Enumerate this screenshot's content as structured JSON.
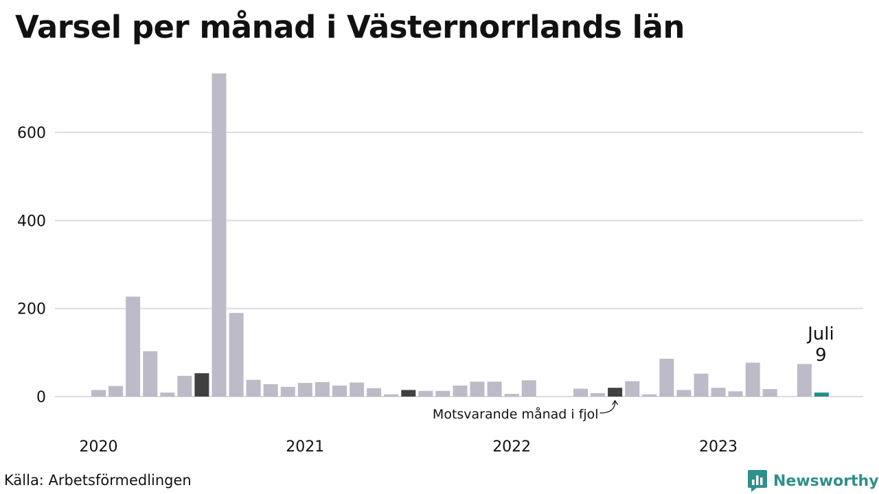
{
  "title": "Varsel per månad i Västernorrlands län",
  "source": "Källa: Arbetsförmedlingen",
  "brand": {
    "name": "Newsworthy",
    "logo_icon": "newsworthy-chart-logo-icon"
  },
  "colors": {
    "bar": "#bdbbc8",
    "comparison": "#404040",
    "highlight": "#1e8f87",
    "grid": "#dcdce3",
    "brand": "#2f8f89"
  },
  "chart_data": {
    "type": "bar",
    "title": "Varsel per månad i Västernorrlands län",
    "ylim": [
      0,
      740
    ],
    "yticks": [
      0,
      200,
      400,
      600
    ],
    "grid": true,
    "x_tick_labels": [
      "2020",
      "2021",
      "2022",
      "2023"
    ],
    "first_month": "2020-01",
    "values": [
      15,
      24,
      227,
      103,
      9,
      47,
      53,
      734,
      190,
      38,
      28,
      22,
      31,
      33,
      25,
      32,
      19,
      5,
      15,
      13,
      13,
      25,
      34,
      34,
      6,
      37,
      0,
      0,
      18,
      8,
      20,
      35,
      5,
      86,
      15,
      52,
      20,
      12,
      77,
      17,
      0,
      74,
      9
    ],
    "comparison_month": "2022-07",
    "latest": {
      "month_label": "Juli",
      "value": "9"
    },
    "annotation": "Motsvarande månad i fjol"
  }
}
